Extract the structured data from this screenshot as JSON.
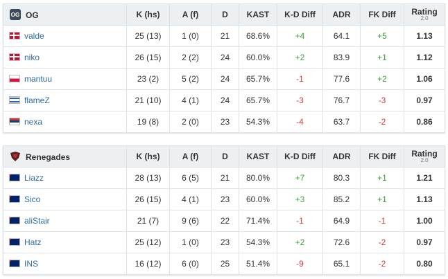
{
  "tables": [
    {
      "team": "OG",
      "columns": [
        "K (hs)",
        "A (f)",
        "D",
        "KAST",
        "K-D Diff",
        "ADR",
        "FK Diff"
      ],
      "rating_label": "Rating",
      "rating_version": "2.0",
      "rows": [
        {
          "player": "valde",
          "stats": [
            "25 (13)",
            "1 (0)",
            "21",
            "68.6%",
            "+4",
            "64.1",
            "+5",
            "1.13"
          ]
        },
        {
          "player": "niko",
          "stats": [
            "26 (15)",
            "2 (2)",
            "24",
            "60.0%",
            "+2",
            "83.9",
            "+1",
            "1.12"
          ]
        },
        {
          "player": "mantuu",
          "stats": [
            "23 (2)",
            "5 (2)",
            "24",
            "65.7%",
            "-1",
            "77.6",
            "+2",
            "1.06"
          ]
        },
        {
          "player": "flameZ",
          "stats": [
            "21 (10)",
            "4 (1)",
            "24",
            "65.7%",
            "-3",
            "76.7",
            "-3",
            "0.97"
          ]
        },
        {
          "player": "nexa",
          "stats": [
            "19 (8)",
            "2 (0)",
            "23",
            "54.3%",
            "-4",
            "63.7",
            "-2",
            "0.86"
          ]
        }
      ]
    },
    {
      "team": "Renegades",
      "columns": [
        "K (hs)",
        "A (f)",
        "D",
        "KAST",
        "K-D Diff",
        "ADR",
        "FK Diff"
      ],
      "rating_label": "Rating",
      "rating_version": "2.0",
      "rows": [
        {
          "player": "Liazz",
          "stats": [
            "28 (13)",
            "6 (5)",
            "21",
            "80.0%",
            "+7",
            "80.3",
            "+1",
            "1.21"
          ]
        },
        {
          "player": "Sico",
          "stats": [
            "26 (15)",
            "4 (1)",
            "23",
            "60.0%",
            "+3",
            "85.2",
            "+1",
            "1.13"
          ]
        },
        {
          "player": "aliStair",
          "stats": [
            "21 (7)",
            "9 (6)",
            "22",
            "71.4%",
            "-1",
            "64.9",
            "-1",
            "1.00"
          ]
        },
        {
          "player": "Hatz",
          "stats": [
            "25 (12)",
            "1 (0)",
            "23",
            "54.3%",
            "+2",
            "72.6",
            "-2",
            "0.97"
          ]
        },
        {
          "player": "INS",
          "stats": [
            "16 (12)",
            "6 (0)",
            "25",
            "51.4%",
            "-9",
            "65.1",
            "-2",
            "0.80"
          ]
        }
      ]
    }
  ]
}
